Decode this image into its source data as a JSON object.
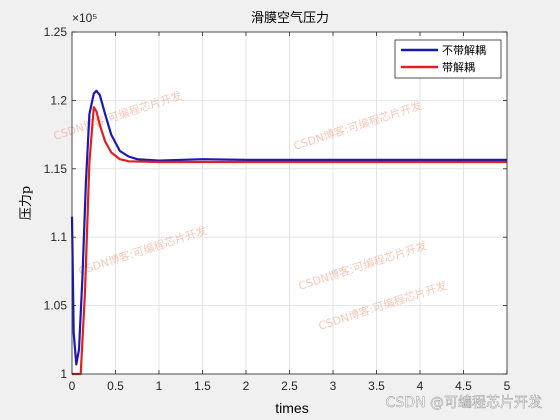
{
  "chart_data": {
    "type": "line",
    "title": "滑膜空气压力",
    "xlabel": "times",
    "ylabel": "压力p",
    "y_exponent": "×10⁵",
    "xlim": [
      0,
      5
    ],
    "ylim": [
      100000,
      125000
    ],
    "grid": true,
    "legend_position": "top-right",
    "x_ticks": [
      "0",
      "0.5",
      "1",
      "1.5",
      "2",
      "2.5",
      "3",
      "3.5",
      "4",
      "4.5",
      "5"
    ],
    "y_ticks": [
      "1",
      "1.05",
      "1.1",
      "1.15",
      "1.2",
      "1.25"
    ],
    "series": [
      {
        "name": "不带解耦",
        "color": "#1a1ab0",
        "x": [
          0.0,
          0.02,
          0.05,
          0.08,
          0.12,
          0.16,
          0.2,
          0.25,
          0.28,
          0.32,
          0.38,
          0.45,
          0.55,
          0.65,
          0.75,
          1.0,
          1.5,
          2.0,
          3.0,
          4.0,
          5.0
        ],
        "y": [
          111500,
          103000,
          100700,
          101800,
          107000,
          114000,
          119000,
          120500,
          120700,
          120400,
          119000,
          117500,
          116300,
          115900,
          115700,
          115600,
          115700,
          115650,
          115650,
          115650,
          115650
        ]
      },
      {
        "name": "带解耦",
        "color": "#e02020",
        "x": [
          0.0,
          0.05,
          0.1,
          0.15,
          0.2,
          0.25,
          0.28,
          0.32,
          0.38,
          0.45,
          0.55,
          0.65,
          1.0,
          1.5,
          2.0,
          3.0,
          4.0,
          5.0
        ],
        "y": [
          100000,
          100000,
          100000,
          106000,
          115500,
          119500,
          119200,
          118200,
          117000,
          116200,
          115700,
          115550,
          115500,
          115500,
          115500,
          115500,
          115500,
          115500
        ]
      }
    ]
  },
  "legend": {
    "items": [
      "不带解耦",
      "带解耦"
    ]
  },
  "watermarks": [
    "CSDN博客:可编程芯片开发",
    "CSDN博客:可编程芯片开发",
    "CSDN博客:可编程芯片开发",
    "CSDN博客:可编程芯片开发",
    "CSDN博客:可编程芯片开发"
  ],
  "footer": {
    "text": "CSDN @可编程芯片开发"
  }
}
